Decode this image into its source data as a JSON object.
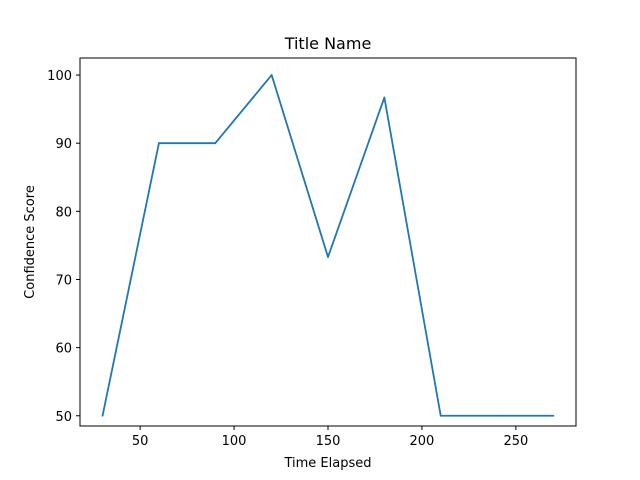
{
  "chart_data": {
    "type": "line",
    "title": "Title Name",
    "xlabel": "Time Elapsed",
    "ylabel": "Confidence Score",
    "xlim": [
      18,
      282
    ],
    "ylim": [
      48.5,
      102.5
    ],
    "x_ticks": [
      50,
      100,
      150,
      200,
      250
    ],
    "y_ticks": [
      50,
      60,
      70,
      80,
      90,
      100
    ],
    "grid": false,
    "series": [
      {
        "color": "#1f77b4",
        "x": [
          30,
          60,
          90,
          120,
          150,
          180,
          210,
          240,
          270
        ],
        "y": [
          50,
          90,
          90,
          100,
          73.3,
          96.7,
          50,
          50,
          50
        ]
      }
    ]
  }
}
